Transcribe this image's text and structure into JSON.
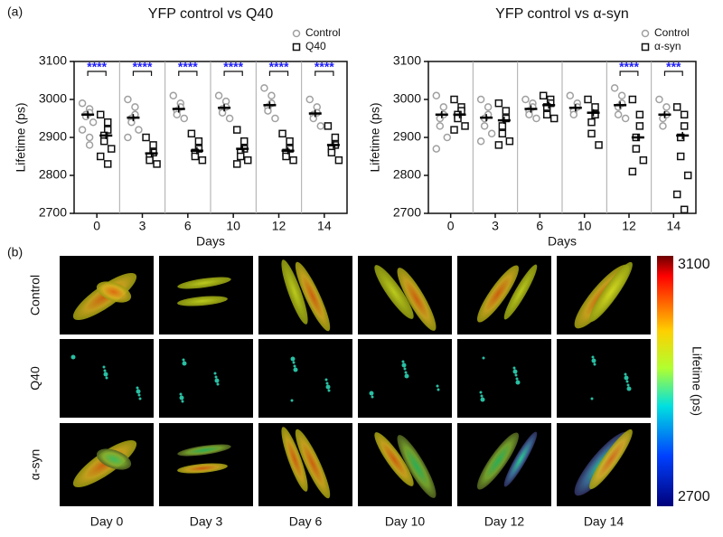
{
  "panel_labels": {
    "a": "(a)",
    "b": "(b)"
  },
  "chart_data": [
    {
      "type": "scatter",
      "title": "YFP control vs Q40",
      "xlabel": "Days",
      "ylabel": "Lifetime (ps)",
      "categories": [
        "0",
        "3",
        "6",
        "10",
        "12",
        "14"
      ],
      "ylim": [
        2700,
        3100
      ],
      "yticks": [
        2700,
        2800,
        2900,
        3000,
        3100
      ],
      "significance": [
        "****",
        "****",
        "****",
        "****",
        "****",
        "****"
      ],
      "significance_color": "#1a1aff",
      "series": [
        {
          "name": "Control",
          "color": "#a0a0a0",
          "marker": "circle",
          "means": [
            2960,
            2952,
            2975,
            2978,
            2985,
            2963
          ],
          "values": [
            [
              2990,
              2975,
              2965,
              2960,
              2955,
              2940,
              2920,
              2900,
              2880
            ],
            [
              3000,
              2980,
              2960,
              2950,
              2940,
              2920,
              2900
            ],
            [
              3010,
              2990,
              2980,
              2970,
              2960,
              2950
            ],
            [
              3010,
              2995,
              2980,
              2975,
              2965,
              2950
            ],
            [
              3030,
              3010,
              2990,
              2980,
              2970,
              2950
            ],
            [
              3000,
              2980,
              2965,
              2960,
              2950,
              2930
            ]
          ]
        },
        {
          "name": "Q40",
          "color": "#111111",
          "marker": "square",
          "means": [
            2905,
            2858,
            2865,
            2870,
            2865,
            2880
          ],
          "values": [
            [
              2960,
              2940,
              2920,
              2905,
              2890,
              2870,
              2850,
              2830
            ],
            [
              2900,
              2880,
              2860,
              2850,
              2840,
              2830
            ],
            [
              2910,
              2890,
              2870,
              2860,
              2850,
              2840
            ],
            [
              2920,
              2890,
              2870,
              2860,
              2850,
              2840,
              2830
            ],
            [
              2910,
              2890,
              2870,
              2860,
              2850,
              2840
            ],
            [
              2930,
              2900,
              2880,
              2870,
              2860,
              2840
            ]
          ]
        }
      ]
    },
    {
      "type": "scatter",
      "title": "YFP control vs α-syn",
      "xlabel": "Days",
      "ylabel": "Lifetime (ps)",
      "categories": [
        "0",
        "3",
        "6",
        "10",
        "12",
        "14"
      ],
      "ylim": [
        2700,
        3100
      ],
      "yticks": [
        2700,
        2800,
        2900,
        3000,
        3100
      ],
      "significance": [
        null,
        null,
        null,
        null,
        "****",
        "***"
      ],
      "significance_color": "#1a1aff",
      "series": [
        {
          "name": "Control",
          "color": "#a0a0a0",
          "marker": "circle",
          "means": [
            2960,
            2952,
            2975,
            2978,
            2985,
            2960
          ],
          "values": [
            [
              3010,
              2980,
              2960,
              2950,
              2930,
              2900,
              2870
            ],
            [
              3000,
              2980,
              2960,
              2950,
              2930,
              2910,
              2890
            ],
            [
              3000,
              2990,
              2980,
              2970,
              2960,
              2950
            ],
            [
              3010,
              2990,
              2980,
              2970,
              2960
            ],
            [
              3030,
              3010,
              2990,
              2980,
              2960,
              2950
            ],
            [
              3000,
              2980,
              2960,
              2950,
              2930
            ]
          ]
        },
        {
          "name": "α-syn",
          "color": "#111111",
          "marker": "square",
          "means": [
            2960,
            2945,
            2985,
            2965,
            2900,
            2905
          ],
          "values": [
            [
              3000,
              2980,
              2970,
              2960,
              2950,
              2930,
              2920
            ],
            [
              2990,
              2970,
              2950,
              2930,
              2910,
              2890,
              2880
            ],
            [
              3010,
              3000,
              2990,
              2980,
              2960,
              2950
            ],
            [
              3000,
              2980,
              2960,
              2940,
              2910,
              2880
            ],
            [
              3000,
              2960,
              2930,
              2900,
              2870,
              2840,
              2810
            ],
            [
              2980,
              2960,
              2930,
              2900,
              2850,
              2800,
              2750,
              2710
            ]
          ]
        }
      ]
    }
  ],
  "image_panel": {
    "rows": [
      "Control",
      "Q40",
      "α-syn"
    ],
    "columns": [
      "Day 0",
      "Day 3",
      "Day 6",
      "Day 10",
      "Day 12",
      "Day 14"
    ],
    "colorbar": {
      "title": "Lifetime (ps)",
      "ticks": [
        3100,
        2700
      ]
    }
  }
}
